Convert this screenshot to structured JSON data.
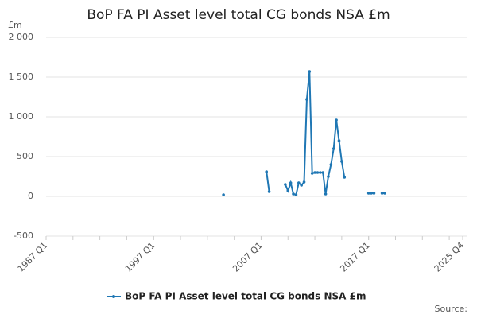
{
  "chart_data": {
    "type": "line",
    "title": "BoP FA PI Asset level total CG bonds NSA £m",
    "y_label": "£m",
    "source": "Source:",
    "categories": [
      "1987 Q1",
      null,
      null,
      null,
      null,
      null,
      null,
      null,
      null,
      null,
      null,
      null,
      null,
      null,
      null,
      null,
      null,
      null,
      null,
      null,
      null,
      null,
      null,
      null,
      null,
      null,
      null,
      null,
      null,
      null,
      null,
      null,
      null,
      null,
      null,
      null,
      null,
      null,
      null,
      null,
      "1997 Q1",
      null,
      null,
      null,
      null,
      null,
      null,
      null,
      null,
      null,
      null,
      null,
      null,
      null,
      null,
      null,
      null,
      null,
      null,
      null,
      null,
      null,
      null,
      null,
      null,
      null,
      null,
      null,
      null,
      null,
      null,
      null,
      null,
      null,
      null,
      null,
      null,
      null,
      null,
      null,
      "2007 Q1",
      null,
      null,
      null,
      null,
      null,
      null,
      null,
      null,
      null,
      null,
      null,
      null,
      null,
      null,
      null,
      null,
      null,
      null,
      null,
      null,
      null,
      null,
      null,
      null,
      null,
      null,
      null,
      null,
      null,
      null,
      null,
      null,
      null,
      null,
      null,
      null,
      null,
      null,
      null,
      "2017 Q1",
      null,
      null,
      null,
      null,
      null,
      null,
      null,
      null,
      null,
      null,
      null,
      null,
      null,
      null,
      null,
      null,
      null,
      null,
      null,
      null,
      null,
      null,
      null,
      null,
      null,
      null,
      null,
      null,
      null,
      null,
      null,
      null,
      null,
      null,
      "2025 Q4"
    ],
    "series": [
      {
        "name": "BoP FA PI Asset level total CG bonds NSA £m",
        "color": "#1f77b4",
        "values": [
          null,
          null,
          null,
          null,
          null,
          null,
          null,
          null,
          null,
          null,
          null,
          null,
          null,
          null,
          null,
          null,
          null,
          null,
          null,
          null,
          null,
          null,
          null,
          null,
          null,
          null,
          null,
          null,
          null,
          null,
          null,
          null,
          null,
          null,
          null,
          null,
          null,
          null,
          null,
          null,
          null,
          null,
          null,
          null,
          null,
          null,
          null,
          null,
          null,
          null,
          null,
          null,
          null,
          null,
          null,
          null,
          null,
          null,
          null,
          null,
          null,
          null,
          null,
          null,
          null,
          null,
          20,
          null,
          null,
          null,
          null,
          null,
          null,
          null,
          null,
          null,
          null,
          null,
          null,
          null,
          null,
          null,
          310,
          60,
          null,
          null,
          null,
          null,
          null,
          150,
          70,
          170,
          30,
          20,
          170,
          140,
          180,
          1220,
          1570,
          290,
          300,
          300,
          300,
          300,
          30,
          250,
          400,
          600,
          960,
          700,
          440,
          240,
          null,
          null,
          null,
          null,
          null,
          null,
          null,
          null,
          40,
          40,
          40,
          null,
          null,
          40,
          40,
          null,
          null,
          null,
          null,
          null,
          null,
          null,
          null,
          null,
          null,
          null,
          null,
          null,
          null,
          null,
          null,
          null,
          null,
          null,
          null,
          null,
          null,
          null,
          null,
          null,
          null,
          null,
          null,
          null
        ]
      }
    ],
    "ylim": [
      -500,
      2000
    ],
    "yticks": [
      -500,
      0,
      500,
      {
        "value": 1000,
        "label": "1 000"
      },
      {
        "value": 1500,
        "label": "1 500"
      },
      {
        "value": 2000,
        "label": "2 000"
      }
    ],
    "grid": true,
    "legend": "bottom"
  }
}
